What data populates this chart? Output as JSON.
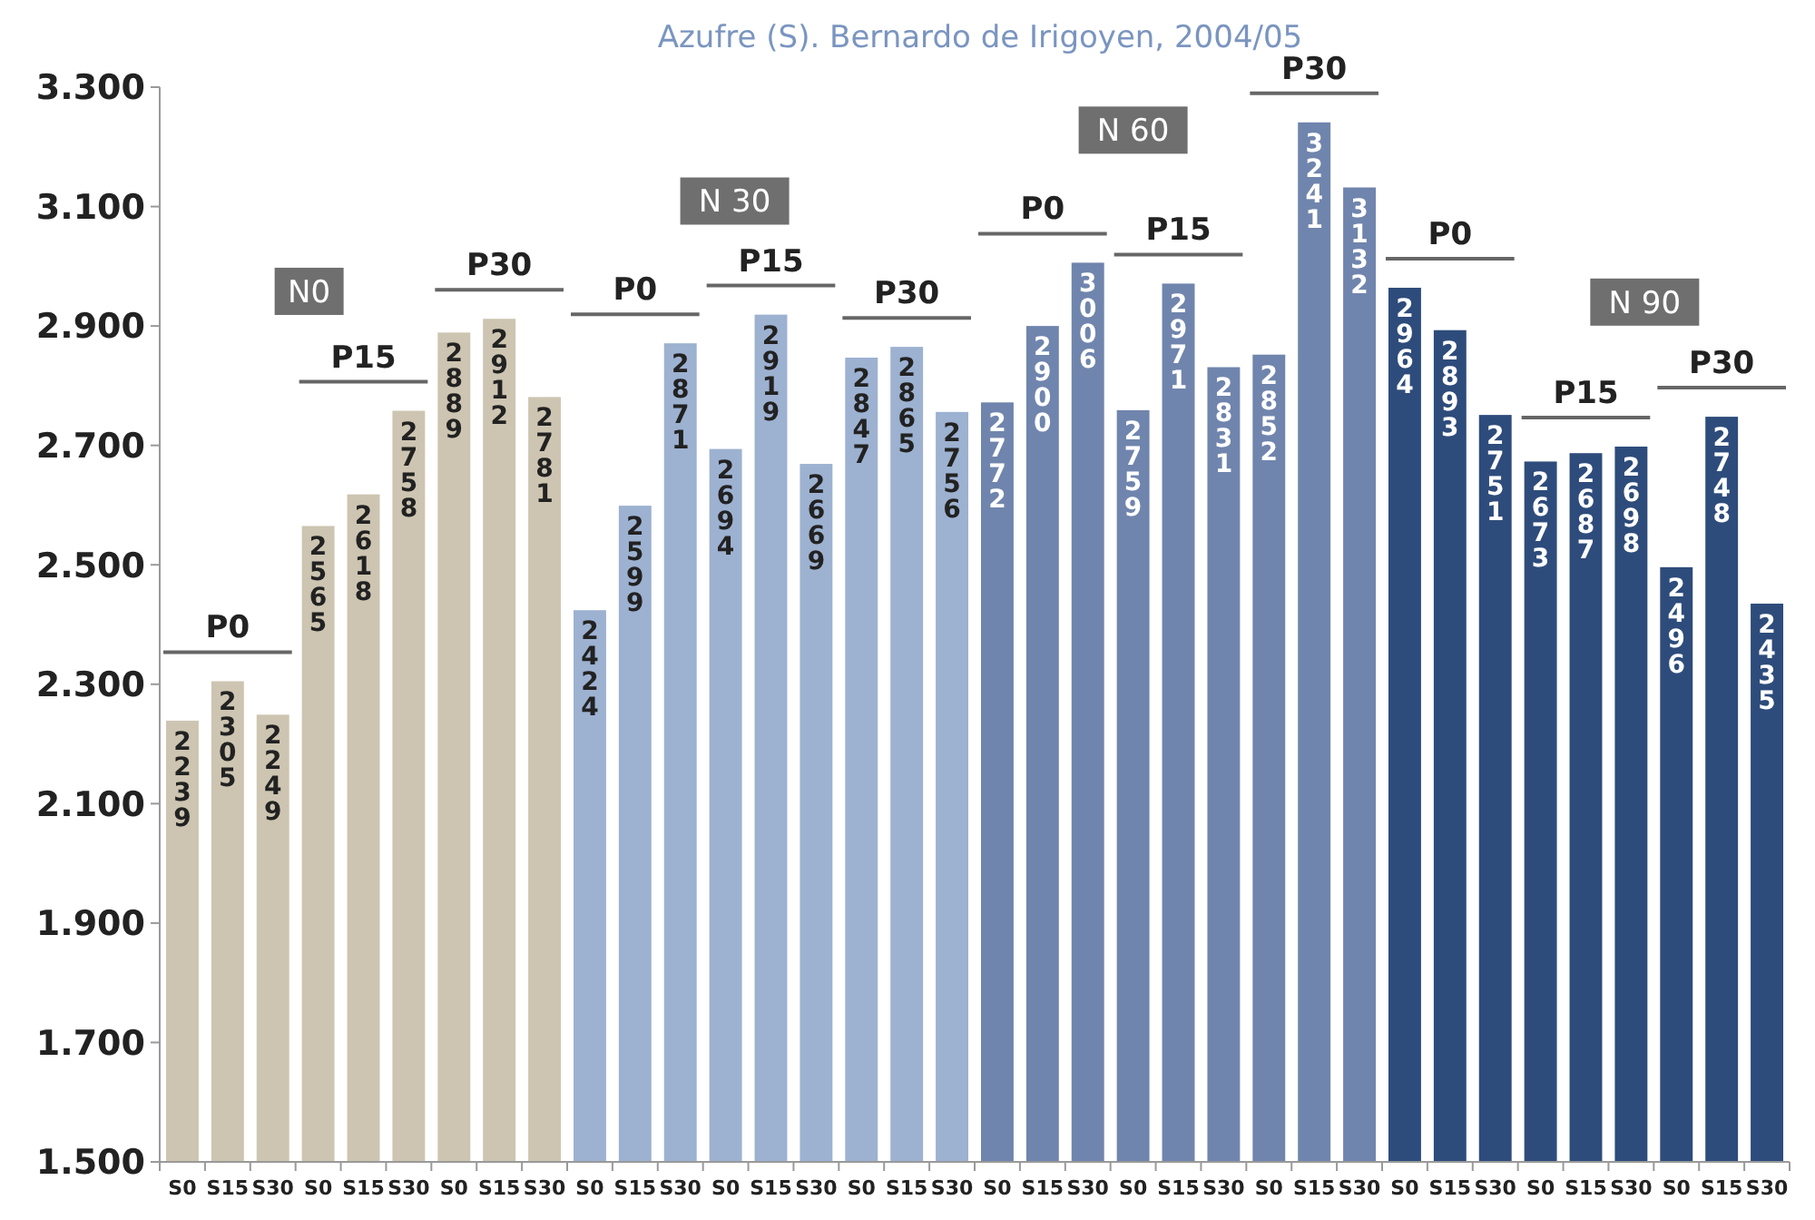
{
  "chart_data": {
    "type": "bar",
    "title": "Azufre (S). Bernardo de Irigoyen, 2004/05",
    "categories": [
      "S0",
      "S15",
      "S30",
      "S0",
      "S15",
      "S30",
      "S0",
      "S15",
      "S30",
      "S0",
      "S15",
      "S30",
      "S0",
      "S15",
      "S30",
      "S0",
      "S15",
      "S30",
      "S0",
      "S15",
      "S30",
      "S0",
      "S15",
      "S30",
      "S0",
      "S15",
      "S30",
      "S0",
      "S15",
      "S30",
      "S0",
      "S15",
      "S30",
      "S0",
      "S15",
      "S30"
    ],
    "values": [
      2239,
      2305,
      2249,
      2565,
      2618,
      2758,
      2889,
      2912,
      2781,
      2424,
      2599,
      2871,
      2694,
      2919,
      2669,
      2847,
      2865,
      2756,
      2772,
      2900,
      3006,
      2759,
      2971,
      2831,
      2852,
      3241,
      3132,
      2964,
      2893,
      2751,
      2673,
      2687,
      2698,
      2496,
      2748,
      2435
    ],
    "colors": [
      "#cdc5b1",
      "#cdc5b1",
      "#cdc5b1",
      "#cdc5b1",
      "#cdc5b1",
      "#cdc5b1",
      "#cdc5b1",
      "#cdc5b1",
      "#cdc5b1",
      "#9db1d1",
      "#9db1d1",
      "#9db1d1",
      "#9db1d1",
      "#9db1d1",
      "#9db1d1",
      "#9db1d1",
      "#9db1d1",
      "#9db1d1",
      "#7085ad",
      "#7085ad",
      "#7085ad",
      "#7085ad",
      "#7085ad",
      "#7085ad",
      "#7085ad",
      "#7085ad",
      "#7085ad",
      "#2e4c7b",
      "#2e4c7b",
      "#2e4c7b",
      "#2e4c7b",
      "#2e4c7b",
      "#2e4c7b",
      "#2e4c7b",
      "#2e4c7b",
      "#2e4c7b"
    ],
    "ylim": [
      1500,
      3300
    ],
    "yticks": [
      {
        "value": 1500,
        "label": "1.500"
      },
      {
        "value": 1700,
        "label": "1.700"
      },
      {
        "value": 1900,
        "label": "1.900"
      },
      {
        "value": 2100,
        "label": "2.100"
      },
      {
        "value": 2300,
        "label": "2.300"
      },
      {
        "value": 2500,
        "label": "2.500"
      },
      {
        "value": 2700,
        "label": "2.700"
      },
      {
        "value": 2900,
        "label": "2.900"
      },
      {
        "value": 3100,
        "label": "3.100"
      },
      {
        "value": 3300,
        "label": "3.300"
      }
    ],
    "data_labels": true,
    "annotations": [
      "N0",
      "P0",
      "P15",
      "P30",
      "N 30",
      "P0",
      "P15",
      "P30",
      "N 60",
      "P0",
      "P15",
      "P30",
      "N 90",
      "P0",
      "P15",
      "P30"
    ]
  }
}
